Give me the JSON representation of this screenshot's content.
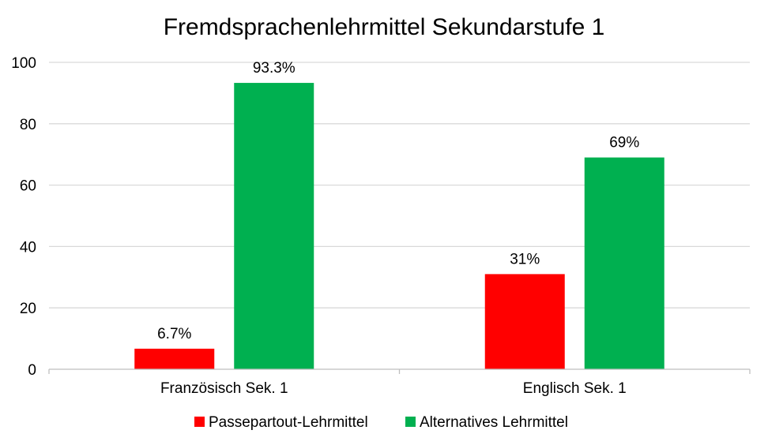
{
  "chart_data": {
    "type": "bar",
    "title": "Fremdsprachenlehrmittel Sekundarstufe 1",
    "xlabel": "",
    "ylabel": "",
    "ylim": [
      0,
      100
    ],
    "yticks": [
      0,
      20,
      40,
      60,
      80,
      100
    ],
    "grid": true,
    "legend_position": "bottom",
    "categories": [
      "Französisch Sek. 1",
      "Englisch Sek. 1"
    ],
    "series": [
      {
        "name": "Passepartout-Lehrmittel",
        "color": "#ff0000",
        "values": [
          6.7,
          31
        ],
        "labels": [
          "6.7%",
          "31%"
        ]
      },
      {
        "name": "Alternatives Lehrmittel",
        "color": "#00b050",
        "values": [
          93.3,
          69
        ],
        "labels": [
          "93.3%",
          "69%"
        ]
      }
    ]
  }
}
